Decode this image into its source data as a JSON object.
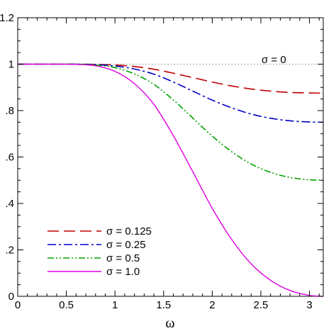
{
  "chart_data": {
    "type": "line",
    "title": "",
    "xlabel": "ω",
    "ylabel": "",
    "xlim": [
      0,
      3.1416
    ],
    "ylim": [
      0,
      1.2
    ],
    "x_ticks": [
      0,
      0.5,
      1,
      1.5,
      2,
      2.5,
      3
    ],
    "x_tick_labels": [
      "0",
      "0.5",
      "1",
      "1.5",
      "2",
      "2.5",
      "3"
    ],
    "y_ticks": [
      0,
      0.2,
      0.4,
      0.6,
      0.8,
      1.0,
      1.2
    ],
    "y_tick_labels": [
      "0",
      ".2",
      ".4",
      ".6",
      ".8",
      "1",
      "1.2"
    ],
    "grid": false,
    "legend_position": "bottom-left",
    "annotation": "σ = 0",
    "reference_line": {
      "label": "σ = 0",
      "y": 1.0,
      "color": "#808080",
      "style": "dotted"
    },
    "x": [
      0,
      0.2,
      0.4,
      0.6,
      0.8,
      1.0,
      1.2,
      1.4,
      1.6,
      1.8,
      2.0,
      2.2,
      2.4,
      2.6,
      2.8,
      3.0,
      3.1416
    ],
    "series": [
      {
        "name": "σ = 0.125",
        "color": "#c00000",
        "style": "dashed",
        "values": [
          1.0,
          1.0,
          1.0,
          1.0,
          0.999,
          0.996,
          0.99,
          0.978,
          0.961,
          0.942,
          0.923,
          0.906,
          0.893,
          0.884,
          0.878,
          0.876,
          0.875
        ]
      },
      {
        "name": "σ = 0.25",
        "color": "#0000c0",
        "style": "dashdot",
        "values": [
          1.0,
          1.0,
          1.0,
          1.0,
          0.998,
          0.992,
          0.979,
          0.957,
          0.923,
          0.884,
          0.845,
          0.812,
          0.785,
          0.767,
          0.756,
          0.751,
          0.75
        ]
      },
      {
        "name": "σ = 0.5",
        "color": "#00a000",
        "style": "dashdotdot",
        "values": [
          1.0,
          1.0,
          1.0,
          1.0,
          0.996,
          0.985,
          0.958,
          0.913,
          0.846,
          0.768,
          0.69,
          0.623,
          0.57,
          0.534,
          0.512,
          0.502,
          0.5
        ]
      },
      {
        "name": "σ = 1.0",
        "color": "#e000e0",
        "style": "solid",
        "values": [
          1.0,
          1.0,
          1.0,
          0.999,
          0.993,
          0.969,
          0.916,
          0.827,
          0.692,
          0.537,
          0.379,
          0.245,
          0.14,
          0.069,
          0.025,
          0.004,
          0.0
        ]
      }
    ]
  }
}
